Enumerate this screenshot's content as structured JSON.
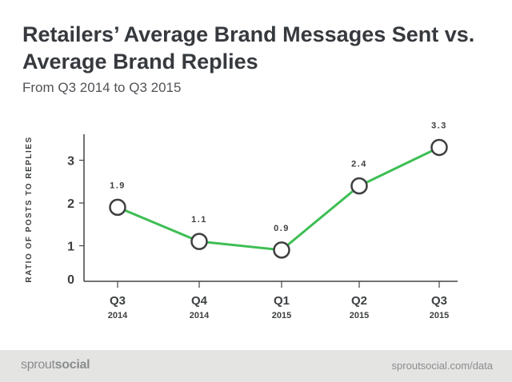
{
  "chart_data": {
    "type": "line",
    "title": "Retailers’ Average Brand Messages Sent vs. Average Brand Replies",
    "subtitle": "From Q3 2014 to Q3 2015",
    "ylabel": "RATIO OF POSTS TO REPLIES",
    "xlabel": "",
    "categories": [
      {
        "quarter": "Q3",
        "year": "2014"
      },
      {
        "quarter": "Q4",
        "year": "2014"
      },
      {
        "quarter": "Q1",
        "year": "2015"
      },
      {
        "quarter": "Q2",
        "year": "2015"
      },
      {
        "quarter": "Q3",
        "year": "2015"
      }
    ],
    "series": [
      {
        "values": [
          1.9,
          1.1,
          0.9,
          2.4,
          3.3
        ],
        "labels": [
          "1.9",
          "1.1",
          "0.9",
          "2.4",
          "3.3"
        ]
      }
    ],
    "yticks": [
      "0",
      "1",
      "2",
      "3"
    ],
    "ylim": [
      0,
      3.4
    ],
    "grid": false,
    "line_color": "#3ebe54",
    "marker_stroke": "#3d3f41",
    "marker_fill": "#ffffff"
  },
  "footer": {
    "brand_part1": "sprout",
    "brand_part2": "social",
    "url": "sproutsocial.com/data"
  }
}
